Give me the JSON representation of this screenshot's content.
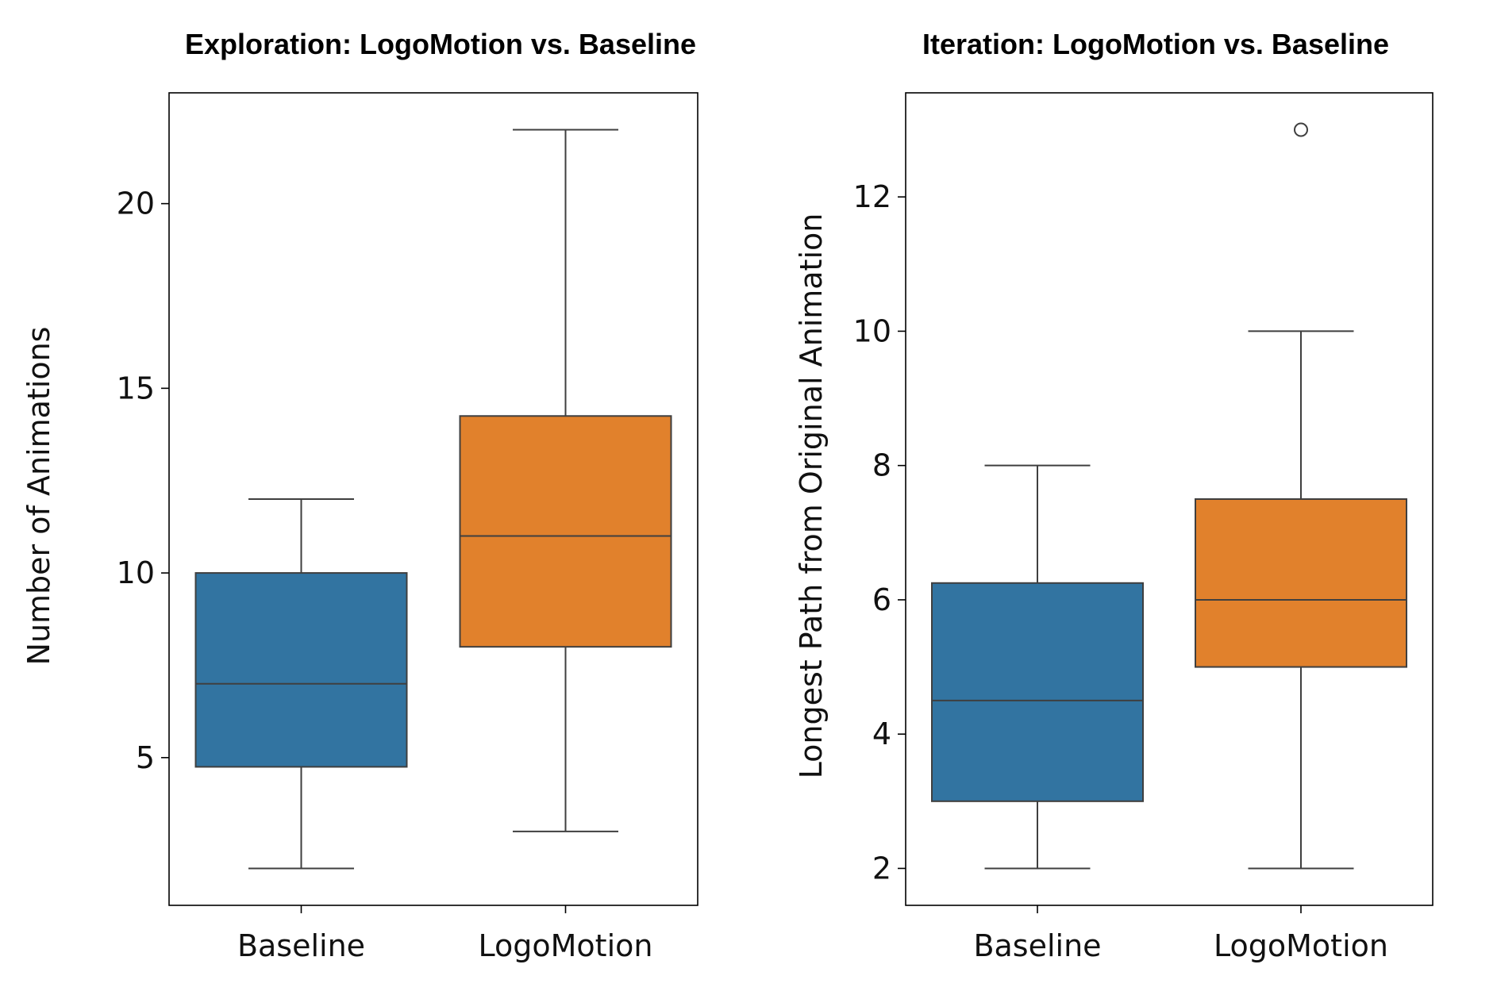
{
  "chart_data": [
    {
      "type": "box",
      "title": "Exploration: LogoMotion vs. Baseline",
      "xlabel": "",
      "ylabel": "Number of Animations",
      "ylim": [
        1,
        23
      ],
      "yticks": [
        5,
        10,
        15,
        20
      ],
      "grid": false,
      "categories": [
        "Baseline",
        "LogoMotion"
      ],
      "colors": [
        "#3274a1",
        "#e1812c"
      ],
      "boxes": [
        {
          "category": "Baseline",
          "whisker_low": 2,
          "q1": 4.75,
          "median": 7,
          "q3": 10,
          "whisker_high": 12,
          "outliers": []
        },
        {
          "category": "LogoMotion",
          "whisker_low": 3,
          "q1": 8,
          "median": 11,
          "q3": 14.25,
          "whisker_high": 22,
          "outliers": []
        }
      ]
    },
    {
      "type": "box",
      "title": "Iteration: LogoMotion vs. Baseline",
      "xlabel": "",
      "ylabel": "Longest Path from Original Animation",
      "ylim": [
        1.45,
        13.55
      ],
      "yticks": [
        2,
        4,
        6,
        8,
        10,
        12
      ],
      "grid": false,
      "categories": [
        "Baseline",
        "LogoMotion"
      ],
      "colors": [
        "#3274a1",
        "#e1812c"
      ],
      "boxes": [
        {
          "category": "Baseline",
          "whisker_low": 2,
          "q1": 3,
          "median": 4.5,
          "q3": 6.25,
          "whisker_high": 8,
          "outliers": []
        },
        {
          "category": "LogoMotion",
          "whisker_low": 2,
          "q1": 5,
          "median": 6,
          "q3": 7.5,
          "whisker_high": 10,
          "outliers": [
            13
          ]
        }
      ]
    }
  ]
}
